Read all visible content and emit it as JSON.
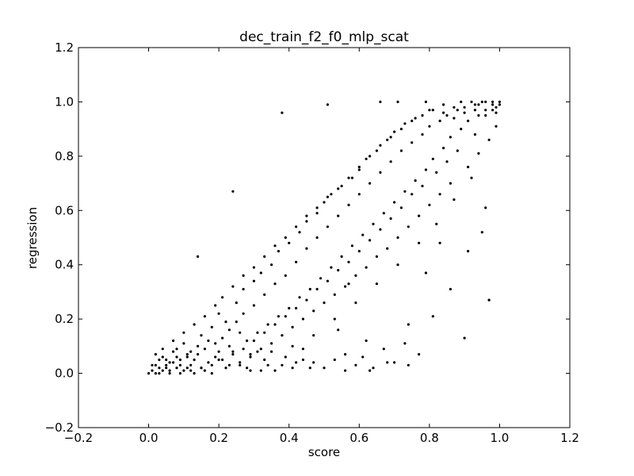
{
  "chart_data": {
    "type": "scatter",
    "title": "dec_train_f2_f0_mlp_scat",
    "xlabel": "score",
    "ylabel": "regression",
    "xlim": [
      -0.2,
      1.2
    ],
    "ylim": [
      -0.2,
      1.2
    ],
    "xticks": [
      -0.2,
      0.0,
      0.2,
      0.4,
      0.6,
      0.8,
      1.0,
      1.2
    ],
    "yticks": [
      -0.2,
      0.0,
      0.2,
      0.4,
      0.6,
      0.8,
      1.0,
      1.2
    ],
    "xtick_labels": [
      "−0.2",
      "0.0",
      "0.2",
      "0.4",
      "0.6",
      "0.8",
      "1.0",
      "1.2"
    ],
    "ytick_labels": [
      "−0.2",
      "0.0",
      "0.2",
      "0.4",
      "0.6",
      "0.8",
      "1.0",
      "1.2"
    ],
    "grid": false,
    "marker_color": "#000000",
    "series": [
      {
        "points": [
          [
            0.0,
            0.0
          ],
          [
            0.01,
            0.01
          ],
          [
            0.02,
            0.0
          ],
          [
            0.03,
            0.02
          ],
          [
            0.04,
            0.01
          ],
          [
            0.05,
            0.03
          ],
          [
            0.06,
            0.0
          ],
          [
            0.07,
            0.04
          ],
          [
            0.08,
            0.02
          ],
          [
            0.09,
            0.05
          ],
          [
            0.1,
            0.01
          ],
          [
            0.11,
            0.06
          ],
          [
            0.12,
            0.03
          ],
          [
            0.13,
            0.0
          ],
          [
            0.14,
            0.07
          ],
          [
            0.15,
            0.02
          ],
          [
            0.16,
            0.09
          ],
          [
            0.17,
            0.04
          ],
          [
            0.18,
            0.0
          ],
          [
            0.19,
            0.11
          ],
          [
            0.2,
            0.05
          ],
          [
            0.21,
            0.13
          ],
          [
            0.22,
            0.02
          ],
          [
            0.23,
            0.16
          ],
          [
            0.24,
            0.08
          ],
          [
            0.25,
            0.19
          ],
          [
            0.26,
            0.03
          ],
          [
            0.27,
            0.22
          ],
          [
            0.28,
            0.12
          ],
          [
            0.29,
            0.06
          ],
          [
            0.3,
            0.25
          ],
          [
            0.31,
            0.15
          ],
          [
            0.32,
            0.01
          ],
          [
            0.33,
            0.29
          ],
          [
            0.34,
            0.18
          ],
          [
            0.35,
            0.08
          ],
          [
            0.36,
            0.33
          ],
          [
            0.37,
            0.21
          ],
          [
            0.38,
            0.03
          ],
          [
            0.39,
            0.36
          ],
          [
            0.4,
            0.24
          ],
          [
            0.41,
            0.1
          ],
          [
            0.42,
            0.41
          ],
          [
            0.43,
            0.28
          ],
          [
            0.44,
            0.05
          ],
          [
            0.45,
            0.46
          ],
          [
            0.46,
            0.31
          ],
          [
            0.47,
            0.14
          ],
          [
            0.48,
            0.5
          ],
          [
            0.49,
            0.35
          ],
          [
            0.5,
            0.02
          ],
          [
            0.51,
            0.54
          ],
          [
            0.52,
            0.39
          ],
          [
            0.53,
            0.2
          ],
          [
            0.54,
            0.58
          ],
          [
            0.55,
            0.43
          ],
          [
            0.56,
            0.07
          ],
          [
            0.57,
            0.62
          ],
          [
            0.58,
            0.47
          ],
          [
            0.59,
            0.26
          ],
          [
            0.6,
            0.66
          ],
          [
            0.61,
            0.51
          ],
          [
            0.62,
            0.12
          ],
          [
            0.63,
            0.7
          ],
          [
            0.64,
            0.55
          ],
          [
            0.65,
            0.33
          ],
          [
            0.66,
            0.74
          ],
          [
            0.67,
            0.59
          ],
          [
            0.68,
            0.04
          ],
          [
            0.69,
            0.78
          ],
          [
            0.7,
            0.63
          ],
          [
            0.71,
            0.4
          ],
          [
            0.72,
            0.82
          ],
          [
            0.73,
            0.67
          ],
          [
            0.74,
            0.18
          ],
          [
            0.75,
            0.85
          ],
          [
            0.76,
            0.71
          ],
          [
            0.77,
            0.48
          ],
          [
            0.78,
            0.88
          ],
          [
            0.79,
            0.75
          ],
          [
            0.8,
            0.91
          ],
          [
            0.81,
            0.79
          ],
          [
            0.82,
            0.55
          ],
          [
            0.83,
            0.93
          ],
          [
            0.84,
            0.83
          ],
          [
            0.85,
            0.95
          ],
          [
            0.86,
            0.87
          ],
          [
            0.87,
            0.64
          ],
          [
            0.88,
            0.97
          ],
          [
            0.89,
            0.9
          ],
          [
            0.9,
            0.98
          ],
          [
            0.91,
            0.93
          ],
          [
            0.92,
            0.72
          ],
          [
            0.93,
            0.99
          ],
          [
            0.94,
            0.95
          ],
          [
            0.95,
            1.0
          ],
          [
            0.96,
            0.97
          ],
          [
            0.97,
            0.27
          ],
          [
            0.98,
            0.99
          ],
          [
            1.0,
            1.0
          ],
          [
            0.38,
            0.96
          ],
          [
            0.51,
            0.99
          ],
          [
            0.66,
            1.0
          ],
          [
            0.71,
            1.0
          ],
          [
            0.79,
            1.0
          ],
          [
            0.24,
            0.67
          ],
          [
            0.14,
            0.43
          ],
          [
            0.91,
            0.45
          ],
          [
            0.97,
            0.27
          ],
          [
            0.96,
            0.61
          ],
          [
            0.83,
            0.48
          ],
          [
            0.63,
            0.01
          ],
          [
            0.57,
            0.33
          ],
          [
            0.79,
            0.37
          ],
          [
            0.74,
            0.03
          ],
          [
            0.54,
            0.16
          ],
          [
            0.46,
            0.02
          ],
          [
            0.42,
            0.04
          ],
          [
            0.33,
            0.05
          ],
          [
            0.29,
            0.01
          ],
          [
            0.05,
            0.05
          ],
          [
            0.08,
            0.09
          ],
          [
            0.1,
            0.11
          ],
          [
            0.12,
            0.08
          ],
          [
            0.15,
            0.14
          ],
          [
            0.18,
            0.17
          ],
          [
            0.2,
            0.22
          ],
          [
            0.22,
            0.19
          ],
          [
            0.25,
            0.26
          ],
          [
            0.27,
            0.31
          ],
          [
            0.3,
            0.34
          ],
          [
            0.32,
            0.37
          ],
          [
            0.35,
            0.4
          ],
          [
            0.37,
            0.45
          ],
          [
            0.4,
            0.48
          ],
          [
            0.43,
            0.52
          ],
          [
            0.45,
            0.56
          ],
          [
            0.48,
            0.59
          ],
          [
            0.5,
            0.63
          ],
          [
            0.52,
            0.66
          ],
          [
            0.55,
            0.69
          ],
          [
            0.58,
            0.72
          ],
          [
            0.6,
            0.75
          ],
          [
            0.62,
            0.79
          ],
          [
            0.65,
            0.82
          ],
          [
            0.68,
            0.86
          ],
          [
            0.7,
            0.89
          ],
          [
            0.73,
            0.92
          ],
          [
            0.76,
            0.94
          ],
          [
            0.8,
            0.97
          ],
          [
            0.84,
            0.99
          ],
          [
            0.87,
            0.98
          ],
          [
            0.89,
            1.0
          ],
          [
            0.92,
            1.0
          ],
          [
            0.94,
            0.99
          ],
          [
            0.96,
            1.0
          ],
          [
            0.98,
            1.0
          ],
          [
            0.99,
            0.98
          ],
          [
            0.93,
            0.88
          ],
          [
            0.88,
            0.82
          ],
          [
            0.85,
            0.78
          ],
          [
            0.82,
            0.74
          ],
          [
            0.78,
            0.69
          ],
          [
            0.75,
            0.66
          ],
          [
            0.72,
            0.61
          ],
          [
            0.69,
            0.57
          ],
          [
            0.66,
            0.53
          ],
          [
            0.63,
            0.49
          ],
          [
            0.6,
            0.45
          ],
          [
            0.57,
            0.41
          ],
          [
            0.54,
            0.38
          ],
          [
            0.51,
            0.34
          ],
          [
            0.48,
            0.31
          ],
          [
            0.45,
            0.27
          ],
          [
            0.42,
            0.24
          ],
          [
            0.39,
            0.21
          ],
          [
            0.36,
            0.18
          ],
          [
            0.33,
            0.15
          ],
          [
            0.3,
            0.12
          ],
          [
            0.27,
            0.09
          ],
          [
            0.24,
            0.07
          ],
          [
            0.21,
            0.05
          ],
          [
            0.18,
            0.03
          ],
          [
            0.15,
            0.02
          ],
          [
            0.12,
            0.01
          ],
          [
            0.09,
            0.0
          ],
          [
            0.06,
            0.01
          ],
          [
            0.03,
            0.0
          ],
          [
            0.02,
            0.03
          ],
          [
            0.04,
            0.06
          ],
          [
            0.06,
            0.04
          ],
          [
            0.07,
            0.08
          ],
          [
            0.09,
            0.03
          ],
          [
            0.11,
            0.02
          ],
          [
            0.13,
            0.05
          ],
          [
            0.16,
            0.01
          ],
          [
            0.19,
            0.06
          ],
          [
            0.23,
            0.03
          ],
          [
            0.26,
            0.04
          ],
          [
            0.28,
            0.02
          ],
          [
            0.31,
            0.08
          ],
          [
            0.34,
            0.03
          ],
          [
            0.36,
            0.01
          ],
          [
            0.39,
            0.06
          ],
          [
            0.41,
            0.02
          ],
          [
            0.44,
            0.09
          ],
          [
            0.47,
            0.04
          ],
          [
            0.53,
            0.05
          ],
          [
            0.56,
            0.01
          ],
          [
            0.59,
            0.03
          ],
          [
            0.61,
            0.06
          ],
          [
            0.64,
            0.02
          ],
          [
            0.67,
            0.09
          ],
          [
            0.7,
            0.04
          ],
          [
            0.73,
            0.11
          ],
          [
            0.77,
            0.07
          ],
          [
            0.81,
            0.21
          ],
          [
            0.86,
            0.31
          ],
          [
            0.9,
            0.13
          ],
          [
            0.95,
            0.52
          ],
          [
            0.99,
            0.91
          ],
          [
            0.97,
            0.86
          ],
          [
            0.94,
            0.81
          ],
          [
            0.91,
            0.76
          ],
          [
            0.86,
            0.7
          ],
          [
            0.83,
            0.66
          ],
          [
            0.8,
            0.62
          ],
          [
            0.77,
            0.58
          ],
          [
            0.74,
            0.54
          ],
          [
            0.71,
            0.5
          ],
          [
            0.68,
            0.46
          ],
          [
            0.65,
            0.43
          ],
          [
            0.62,
            0.39
          ],
          [
            0.59,
            0.36
          ],
          [
            0.56,
            0.32
          ],
          [
            0.53,
            0.29
          ],
          [
            0.5,
            0.26
          ],
          [
            0.47,
            0.23
          ],
          [
            0.44,
            0.2
          ],
          [
            0.41,
            0.17
          ],
          [
            0.38,
            0.14
          ],
          [
            0.35,
            0.11
          ],
          [
            0.32,
            0.09
          ],
          [
            0.29,
            0.07
          ],
          [
            0.26,
            0.15
          ],
          [
            0.23,
            0.1
          ],
          [
            0.2,
            0.08
          ],
          [
            0.17,
            0.12
          ],
          [
            0.14,
            0.1
          ],
          [
            0.11,
            0.07
          ],
          [
            0.08,
            0.06
          ],
          [
            0.05,
            0.02
          ],
          [
            0.03,
            0.05
          ],
          [
            0.01,
            0.03
          ],
          [
            0.02,
            0.07
          ],
          [
            0.04,
            0.09
          ],
          [
            0.07,
            0.12
          ],
          [
            0.1,
            0.15
          ],
          [
            0.13,
            0.18
          ],
          [
            0.16,
            0.21
          ],
          [
            0.19,
            0.25
          ],
          [
            0.21,
            0.28
          ],
          [
            0.24,
            0.32
          ],
          [
            0.27,
            0.36
          ],
          [
            0.3,
            0.39
          ],
          [
            0.33,
            0.43
          ],
          [
            0.36,
            0.47
          ],
          [
            0.39,
            0.5
          ],
          [
            0.42,
            0.54
          ],
          [
            0.45,
            0.58
          ],
          [
            0.48,
            0.61
          ],
          [
            0.51,
            0.65
          ],
          [
            0.54,
            0.68
          ],
          [
            0.57,
            0.72
          ],
          [
            0.6,
            0.76
          ],
          [
            0.63,
            0.8
          ],
          [
            0.66,
            0.84
          ],
          [
            0.69,
            0.87
          ],
          [
            0.72,
            0.9
          ],
          [
            0.75,
            0.93
          ],
          [
            0.78,
            0.95
          ],
          [
            0.81,
            0.97
          ],
          [
            0.84,
            0.96
          ],
          [
            0.87,
            0.94
          ],
          [
            0.9,
            0.96
          ],
          [
            0.93,
            0.97
          ],
          [
            0.96,
            0.95
          ],
          [
            0.98,
            0.97
          ],
          [
            1.0,
            0.99
          ],
          [
            0.99,
            0.96
          ]
        ]
      }
    ]
  }
}
